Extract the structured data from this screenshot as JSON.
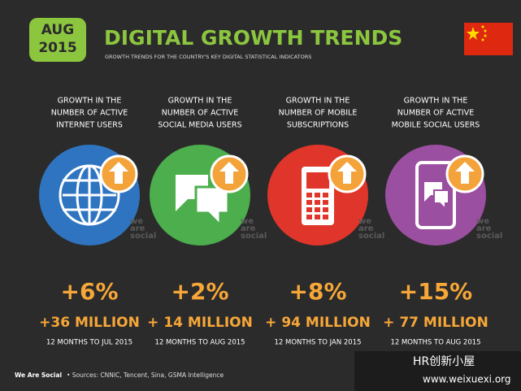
{
  "header": {
    "badge": [
      "AUG",
      "2015"
    ],
    "title": "DIGITAL GROWTH TRENDS",
    "subtitle": "GROWTH TRENDS FOR THE COUNTRY'S KEY DIGITAL STATISTICAL INDICATORS"
  },
  "cards": [
    {
      "label": [
        "GROWTH IN THE",
        "NUMBER OF ACTIVE",
        "INTERNET USERS"
      ],
      "percent": "+6%",
      "absolute": "+36 MILLION",
      "period": "12 MONTHS TO JUL 2015"
    },
    {
      "label": [
        "GROWTH IN THE",
        "NUMBER OF ACTIVE",
        "SOCIAL MEDIA USERS"
      ],
      "percent": "+2%",
      "absolute": "+ 14 MILLION",
      "period": "12 MONTHS TO AUG 2015"
    },
    {
      "label": [
        "GROWTH IN THE",
        "NUMBER OF MOBILE",
        "SUBSCRIPTIONS"
      ],
      "percent": "+8%",
      "absolute": "+ 94 MILLION",
      "period": "12 MONTHS TO JAN 2015"
    },
    {
      "label": [
        "GROWTH IN THE",
        "NUMBER OF ACTIVE",
        "MOBILE SOCIAL USERS"
      ],
      "percent": "+15%",
      "absolute": "+ 77 MILLION",
      "period": "12 MONTHS TO AUG 2015"
    }
  ],
  "watermark": [
    "we",
    "are",
    "social"
  ],
  "footer": {
    "brand": "We Are Social",
    "sources": "•  Sources: CNNIC, Tencent, Sina, GSMA Intelligence"
  },
  "overlay": {
    "name": "HR创新小屋",
    "url": "www.weixuexi.org"
  }
}
